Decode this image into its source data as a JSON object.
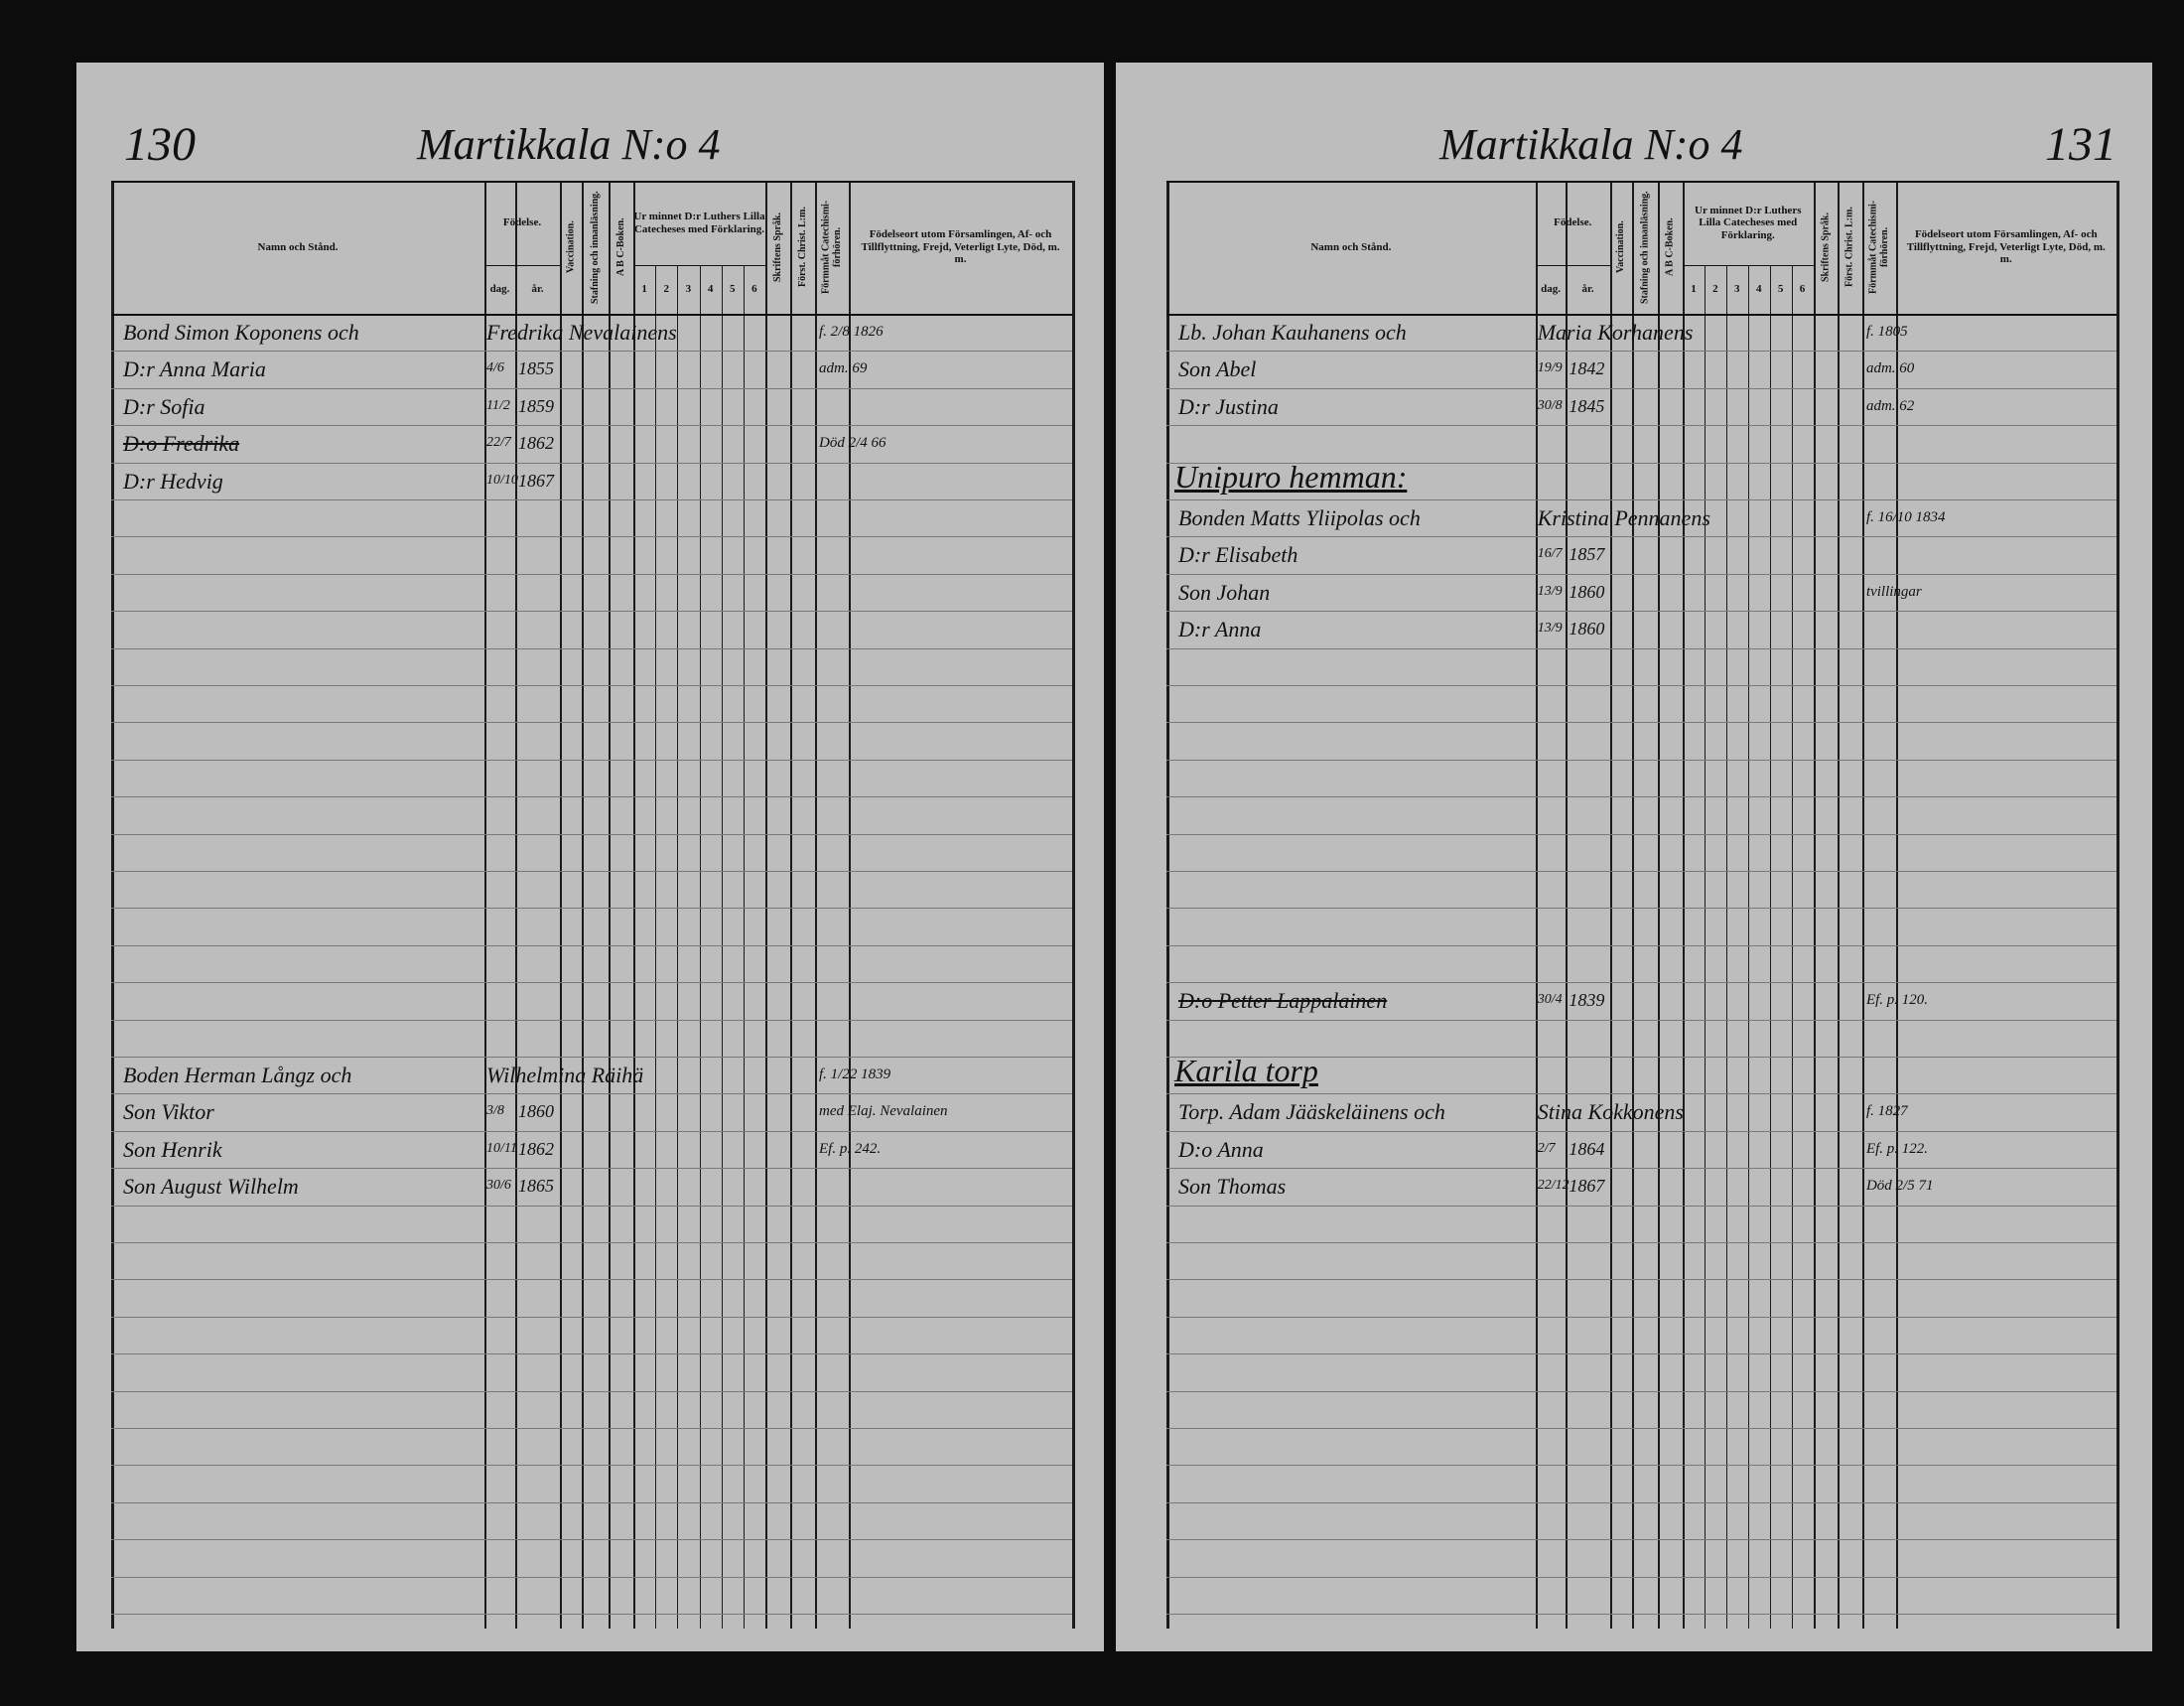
{
  "pages": [
    {
      "page_number": "130",
      "title": "Martikkala N:o 4",
      "entries": [
        {
          "name": "Bond Simon Koponens och",
          "spouse": "Fredrika Nevalainens",
          "note": "f. 2/8 1826"
        },
        {
          "name": "D:r Anna Maria",
          "day": "4/6",
          "year": "1855",
          "note": "adm. 69"
        },
        {
          "name": "D:r Sofia",
          "day": "11/2",
          "year": "1859"
        },
        {
          "name": "D:o Fredrika",
          "day": "22/7",
          "year": "1862",
          "note": "Död 2/4 66",
          "struck": true
        },
        {
          "name": "D:r Hedvig",
          "day": "10/10",
          "year": "1867"
        },
        {
          "name": "Boden Herman Långz och",
          "spouse": "Wilhelmina Räihä",
          "note": "f. 1/22 1839"
        },
        {
          "name": "Son Viktor",
          "day": "3/8",
          "year": "1860",
          "note": "med Elaj. Nevalainen"
        },
        {
          "name": "Son Henrik",
          "day": "10/11",
          "year": "1862",
          "note": "Ef. p. 242."
        },
        {
          "name": "Son August Wilhelm",
          "day": "30/6",
          "year": "1865"
        }
      ]
    },
    {
      "page_number": "131",
      "title": "Martikkala N:o 4",
      "entries": [
        {
          "name": "Lb. Johan Kauhanens och",
          "spouse": "Maria Korhanens",
          "note": "f. 1805"
        },
        {
          "name": "Son Abel",
          "day": "19/9",
          "year": "1842",
          "note": "adm. 60"
        },
        {
          "name": "D:r Justina",
          "day": "30/8",
          "year": "1845",
          "note": "adm. 62"
        },
        {
          "heading": "Unipuro hemman:"
        },
        {
          "name": "Bonden Matts Yliipolas och",
          "spouse": "Kristina Pennanens",
          "note": "f. 16/10 1834"
        },
        {
          "name": "D:r Elisabeth",
          "day": "16/7",
          "year": "1857"
        },
        {
          "name": "Son Johan",
          "day": "13/9",
          "year": "1860",
          "note": "tvillingar"
        },
        {
          "name": "D:r Anna",
          "day": "13/9",
          "year": "1860"
        },
        {
          "name": "D:o Petter Lappalainen",
          "day": "30/4",
          "year": "1839",
          "note": "Ef. p. 120.",
          "struck": true
        },
        {
          "heading": "Karila torp"
        },
        {
          "name": "Torp. Adam Jääskeläinens och",
          "spouse": "Stina Kokkonens",
          "note": "f. 1827"
        },
        {
          "name": "D:o Anna",
          "day": "2/7",
          "year": "1864",
          "note": "Ef. p. 122."
        },
        {
          "name": "Son Thomas",
          "day": "22/12",
          "year": "1867",
          "note": "Död 2/5 71"
        }
      ]
    }
  ],
  "headers": {
    "name": "Namn och Stånd.",
    "birth": "Födelse.",
    "day": "dag.",
    "year": "år.",
    "vaccination": "Vaccination.",
    "reading": "Stafning och innanläsning.",
    "abc": "A B C-Boken.",
    "catechism": "Ur minnet D:r Luthers Lilla Catecheses med Förklaring.",
    "catechism_parts": [
      "1",
      "2",
      "3",
      "4",
      "5",
      "6"
    ],
    "scripture": "Skriftens Språk.",
    "christ": "Först. Christ. L:m.",
    "examinations": "Förmmåt Catechismi-förhören.",
    "remarks": "Födelseort utom Församlingen, Af- och Tillflyttning, Frejd, Veterligt Lyte, Död, m. m."
  }
}
